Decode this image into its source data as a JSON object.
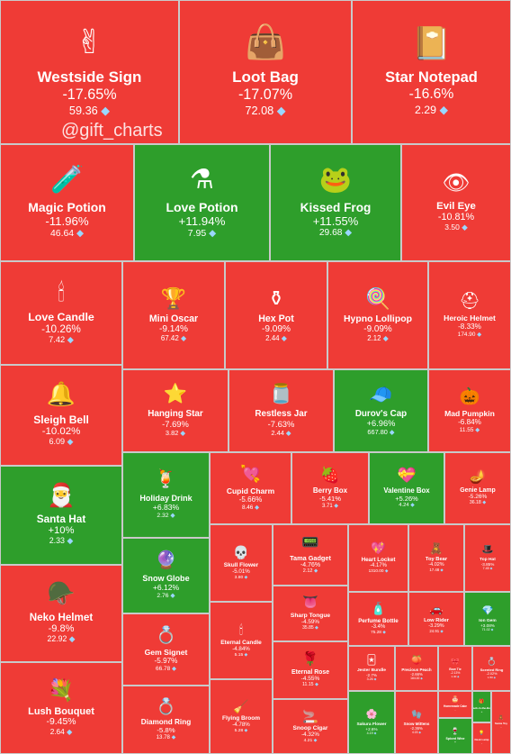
{
  "watermark": "@gift_charts",
  "currency_icon": "diamond-icon",
  "colors": {
    "down": "#ef3b36",
    "up": "#2e9e2b"
  },
  "chart_data": {
    "type": "treemap",
    "title": "",
    "items": [
      {
        "name": "Westside Sign",
        "change": "-17.65%",
        "price": "59.36",
        "icon": "✌",
        "trend": "down"
      },
      {
        "name": "Loot Bag",
        "change": "-17.07%",
        "price": "72.08",
        "icon": "👜",
        "trend": "down"
      },
      {
        "name": "Star Notepad",
        "change": "-16.6%",
        "price": "2.29",
        "icon": "📔",
        "trend": "down"
      },
      {
        "name": "Magic Potion",
        "change": "-11.96%",
        "price": "46.64",
        "icon": "🧪",
        "trend": "down"
      },
      {
        "name": "Love Potion",
        "change": "+11.94%",
        "price": "7.95",
        "icon": "⚗",
        "trend": "up"
      },
      {
        "name": "Kissed Frog",
        "change": "+11.55%",
        "price": "29.68",
        "icon": "🐸",
        "trend": "up"
      },
      {
        "name": "Evil Eye",
        "change": "-10.81%",
        "price": "3.50",
        "icon": "👁",
        "trend": "down"
      },
      {
        "name": "Love Candle",
        "change": "-10.26%",
        "price": "7.42",
        "icon": "🕯",
        "trend": "down"
      },
      {
        "name": "Mini Oscar",
        "change": "-9.14%",
        "price": "67.42",
        "icon": "🏆",
        "trend": "down"
      },
      {
        "name": "Hex Pot",
        "change": "-9.09%",
        "price": "2.44",
        "icon": "⚱",
        "trend": "down"
      },
      {
        "name": "Hypno Lollipop",
        "change": "-9.09%",
        "price": "2.12",
        "icon": "🍭",
        "trend": "down"
      },
      {
        "name": "Heroic Helmet",
        "change": "-8.33%",
        "price": "174.90",
        "icon": "⛑",
        "trend": "down"
      },
      {
        "name": "Sleigh Bell",
        "change": "-10.02%",
        "price": "6.09",
        "icon": "🔔",
        "trend": "down"
      },
      {
        "name": "Hanging Star",
        "change": "-7.69%",
        "price": "3.82",
        "icon": "⭐",
        "trend": "down"
      },
      {
        "name": "Restless Jar",
        "change": "-7.63%",
        "price": "2.44",
        "icon": "🫙",
        "trend": "down"
      },
      {
        "name": "Durov's Cap",
        "change": "+6.96%",
        "price": "667.80",
        "icon": "🧢",
        "trend": "up"
      },
      {
        "name": "Mad Pumpkin",
        "change": "-6.84%",
        "price": "11.55",
        "icon": "🎃",
        "trend": "down"
      },
      {
        "name": "Santa Hat",
        "change": "+10%",
        "price": "2.33",
        "icon": "🎅",
        "trend": "up"
      },
      {
        "name": "Holiday Drink",
        "change": "+6.83%",
        "price": "2.32",
        "icon": "🍹",
        "trend": "up"
      },
      {
        "name": "Cupid Charm",
        "change": "-5.66%",
        "price": "8.46",
        "icon": "💘",
        "trend": "down"
      },
      {
        "name": "Berry Box",
        "change": "-5.41%",
        "price": "3.71",
        "icon": "🍓",
        "trend": "down"
      },
      {
        "name": "Valentine Box",
        "change": "+5.26%",
        "price": "4.24",
        "icon": "💝",
        "trend": "up"
      },
      {
        "name": "Genie Lamp",
        "change": "-5.26%",
        "price": "36.18",
        "icon": "🪔",
        "trend": "down"
      },
      {
        "name": "Snow Globe",
        "change": "+6.12%",
        "price": "2.76",
        "icon": "🔮",
        "trend": "up"
      },
      {
        "name": "Skull Flower",
        "change": "-5.01%",
        "price": "3.80",
        "icon": "💀",
        "trend": "down"
      },
      {
        "name": "Tama Gadget",
        "change": "-4.76%",
        "price": "2.12",
        "icon": "📟",
        "trend": "down"
      },
      {
        "name": "Heart Locket",
        "change": "-4.17%",
        "price": "1310.00",
        "icon": "💖",
        "trend": "down"
      },
      {
        "name": "Toy Bear",
        "change": "-4.02%",
        "price": "17.48",
        "icon": "🧸",
        "trend": "down"
      },
      {
        "name": "Top Hat",
        "change": "-3.85%",
        "price": "7.45",
        "icon": "🎩",
        "trend": "down"
      },
      {
        "name": "Neko Helmet",
        "change": "-9.8%",
        "price": "22.92",
        "icon": "🪖",
        "trend": "down"
      },
      {
        "name": "Gem Signet",
        "change": "-5.97%",
        "price": "66.78",
        "icon": "💍",
        "trend": "down"
      },
      {
        "name": "Eternal Candle",
        "change": "-4.84%",
        "price": "5.15",
        "icon": "🕯",
        "trend": "down"
      },
      {
        "name": "Sharp Tongue",
        "change": "-4.59%",
        "price": "35.85",
        "icon": "👅",
        "trend": "down"
      },
      {
        "name": "Perfume Bottle",
        "change": "-3.4%",
        "price": "75.28",
        "icon": "🧴",
        "trend": "down"
      },
      {
        "name": "Low Rider",
        "change": "-3.29%",
        "price": "24.91",
        "icon": "🚗",
        "trend": "down"
      },
      {
        "name": "Ion Gem",
        "change": "+3.08%",
        "price": "71.02",
        "icon": "💎",
        "trend": "up"
      },
      {
        "name": "Eternal Rose",
        "change": "-4.55%",
        "price": "11.15",
        "icon": "🌹",
        "trend": "down"
      },
      {
        "name": "Jester Bundle",
        "change": "-2.7%",
        "price": "3.26",
        "icon": "🃏",
        "trend": "down"
      },
      {
        "name": "Precious Peach",
        "change": "-2.66%",
        "price": "184.00",
        "icon": "🍑",
        "trend": "down"
      },
      {
        "name": "Bow Tie",
        "change": "-2.13%",
        "price": "1.40",
        "icon": "🎀",
        "trend": "down"
      },
      {
        "name": "Scented Ring",
        "change": "-2.02%",
        "price": "1.50",
        "icon": "💍",
        "trend": "down"
      },
      {
        "name": "Lush Bouquet",
        "change": "-9.45%",
        "price": "2.64",
        "icon": "💐",
        "trend": "down"
      },
      {
        "name": "Diamond Ring",
        "change": "-5.8%",
        "price": "13.78",
        "icon": "💍",
        "trend": "down"
      },
      {
        "name": "Flying Broom",
        "change": "-4.78%",
        "price": "5.28",
        "icon": "🧹",
        "trend": "down"
      },
      {
        "name": "Snoop Cigar",
        "change": "-4.32%",
        "price": "4.21",
        "icon": "🚬",
        "trend": "down"
      },
      {
        "name": "Sakura Flower",
        "change": "+2.6%",
        "price": "4.19",
        "icon": "🌸",
        "trend": "up"
      },
      {
        "name": "Snow Mittens",
        "change": "-2.36%",
        "price": "4.03",
        "icon": "🧤",
        "trend": "down"
      },
      {
        "name": "Homemade Cake",
        "change": "-",
        "price": "",
        "icon": "🎂",
        "trend": "down"
      },
      {
        "name": "Spiced Wine",
        "change": "+",
        "price": "",
        "icon": "🍷",
        "trend": "up"
      },
      {
        "name": "Jack-in-the-Box",
        "change": "+",
        "price": "",
        "icon": "🎁",
        "trend": "up"
      },
      {
        "name": "Santa Toy",
        "change": "-",
        "price": "",
        "icon": "🧸",
        "trend": "down"
      },
      {
        "name": "Desk Lamp",
        "change": "-",
        "price": "",
        "icon": "💡",
        "trend": "down"
      }
    ]
  }
}
